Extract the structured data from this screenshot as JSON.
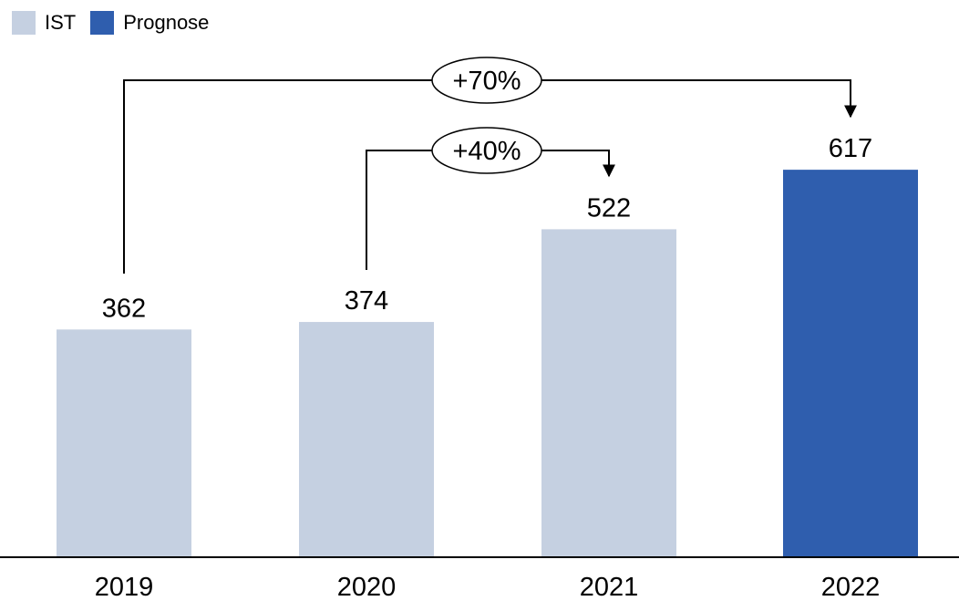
{
  "chart_data": {
    "type": "bar",
    "categories": [
      "2019",
      "2020",
      "2021",
      "2022"
    ],
    "values": [
      362,
      374,
      522,
      617
    ],
    "series_type": [
      "IST",
      "IST",
      "IST",
      "Prognose"
    ],
    "legend": [
      {
        "name": "IST",
        "color": "#c5d0e1"
      },
      {
        "name": "Prognose",
        "color": "#2f5eae"
      }
    ],
    "legend_position": "top-left",
    "ylim": [
      0,
      700
    ],
    "grid": false,
    "annotations": [
      {
        "label": "+70%",
        "from": "2019",
        "to": "2022"
      },
      {
        "label": "+40%",
        "from": "2020",
        "to": "2021"
      }
    ]
  }
}
